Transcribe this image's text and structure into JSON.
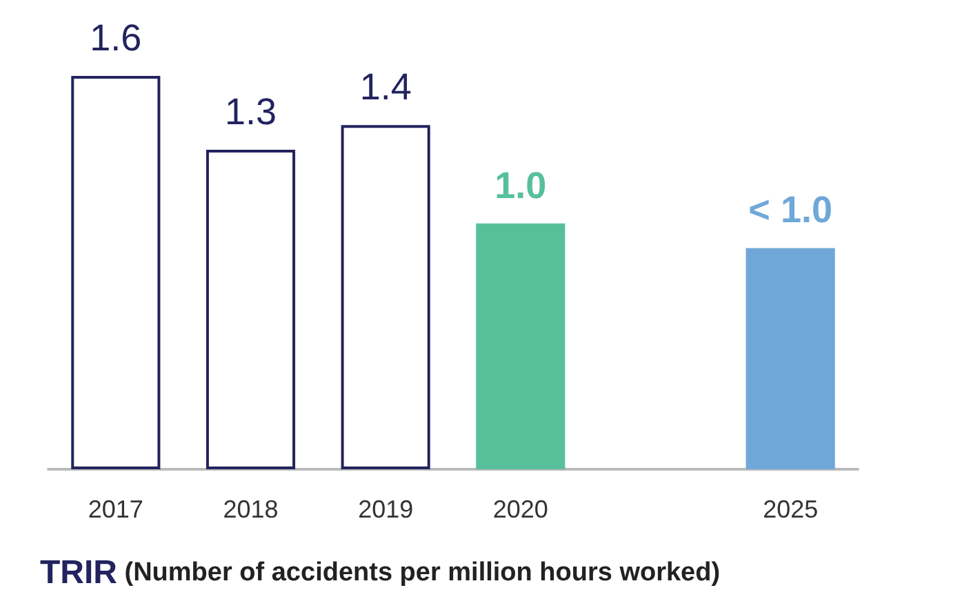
{
  "chart_data": {
    "type": "bar",
    "title": "TRIR (Number of accidents per million hours worked)",
    "categories": [
      "2017",
      "2018",
      "2019",
      "2020",
      null,
      "2025"
    ],
    "values": [
      1.6,
      1.3,
      1.4,
      1.0,
      null,
      0.9
    ],
    "colors": [
      "#ffffff",
      "#ffffff",
      "#ffffff",
      "#57c09a",
      "#ffffff",
      "#6fa8d8"
    ],
    "value_labels": [
      "1.6",
      "1.3",
      "1.4",
      "1.0",
      null,
      "< 1.0"
    ]
  }
}
